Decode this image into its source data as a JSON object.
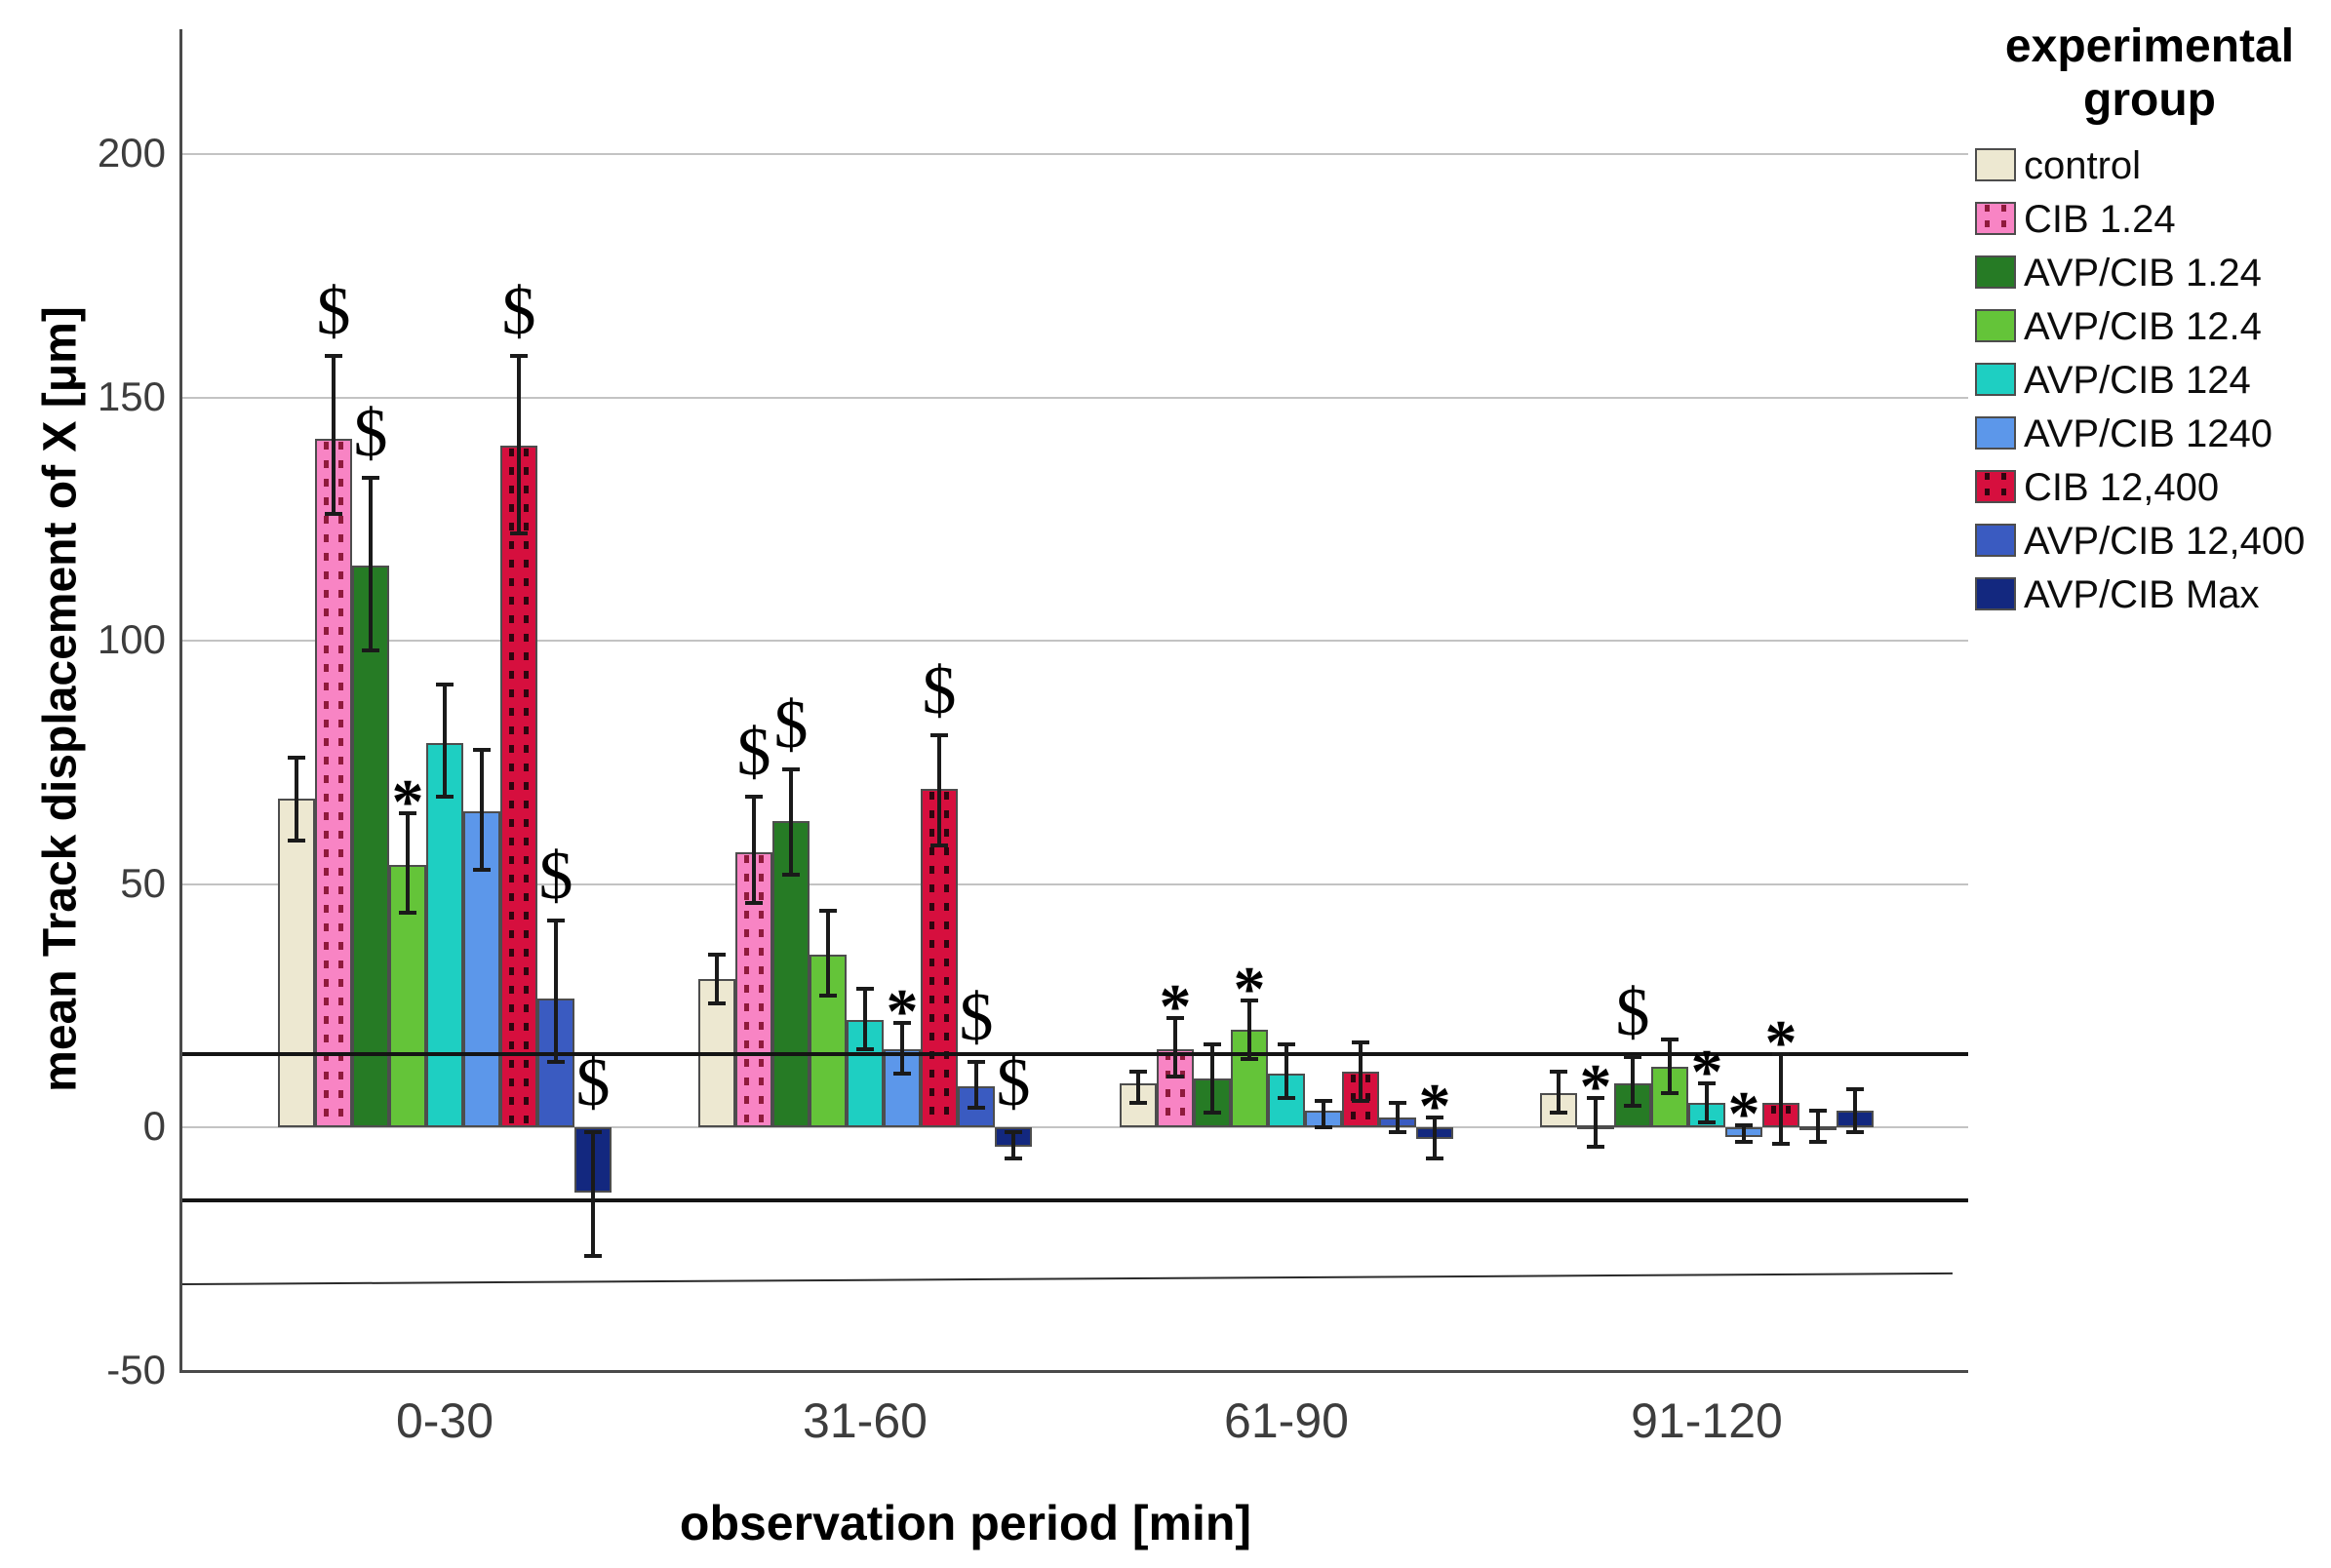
{
  "y_axis": {
    "label": "mean Track displacement of X [μm]",
    "ticks": [
      200,
      150,
      100,
      50,
      0,
      -50
    ]
  },
  "x_axis": {
    "label": "observation period [min]",
    "tick_labels": [
      "0-30",
      "31-60",
      "61-90",
      "91-120"
    ]
  },
  "legend": {
    "title_lines": [
      "experimental",
      "group"
    ]
  },
  "colors": {
    "axis_line": "#4a4a4a",
    "gridline": "#c3c3c3",
    "reference_line": "#141414",
    "error_bar": "#1a1a1a",
    "tick_text": "#3d3d3d",
    "title_text": "#000000"
  },
  "chart_data": {
    "type": "bar",
    "title": "",
    "xlabel": "observation period [min]",
    "ylabel": "mean Track displacement of X [μm]",
    "categories": [
      "0-30",
      "31-60",
      "61-90",
      "91-120"
    ],
    "y_ticks": [
      -50,
      0,
      50,
      100,
      150,
      200
    ],
    "ylim": [
      -50,
      226
    ],
    "grid": "horizontal",
    "legend_position": "right",
    "legend_title": "experimental group",
    "annotation_symbols": [
      "$",
      "*"
    ],
    "reference_lines": [
      {
        "value": 15,
        "style": "thick"
      },
      {
        "value": -15,
        "style": "thick"
      },
      {
        "value_start": -32,
        "value_end": -29.5,
        "style": "thin-sloped"
      }
    ],
    "series": [
      {
        "name": "control",
        "color": "#EDE8D1",
        "pattern": "none",
        "pattern_color": "",
        "values": [
          67.5,
          30.5,
          9,
          7
        ],
        "err_low": [
          59,
          25.5,
          5,
          3
        ],
        "err_high": [
          76,
          35.5,
          11.5,
          11.5
        ],
        "annotations": [
          null,
          null,
          null,
          null
        ]
      },
      {
        "name": "CIB 1.24",
        "color": "#F884C4",
        "pattern": "dots",
        "pattern_color": "#8F1A3C",
        "values": [
          141.5,
          56.5,
          16,
          0.5
        ],
        "err_low": [
          126,
          46,
          10.5,
          -4
        ],
        "err_high": [
          158.5,
          68,
          22.5,
          6
        ],
        "annotations": [
          "$",
          "$",
          "*",
          "*"
        ]
      },
      {
        "name": "AVP/CIB 1.24",
        "color": "#267B25",
        "pattern": "none",
        "pattern_color": "",
        "values": [
          115.5,
          63,
          10,
          9
        ],
        "err_low": [
          98,
          52,
          3,
          4.5
        ],
        "err_high": [
          133.5,
          73.5,
          17,
          14.5
        ],
        "annotations": [
          "$",
          "$",
          null,
          "$"
        ]
      },
      {
        "name": "AVP/CIB 12.4",
        "color": "#64C439",
        "pattern": "none",
        "pattern_color": "",
        "values": [
          54,
          35.5,
          20,
          12.5
        ],
        "err_low": [
          44,
          27,
          14,
          7
        ],
        "err_high": [
          64.5,
          44.5,
          26,
          18
        ],
        "annotations": [
          "*",
          null,
          "*",
          null
        ]
      },
      {
        "name": "AVP/CIB 124",
        "color": "#1ECFC2",
        "pattern": "none",
        "pattern_color": "",
        "values": [
          79,
          22,
          11,
          5
        ],
        "err_low": [
          68,
          16,
          6,
          1
        ],
        "err_high": [
          91,
          28.5,
          17,
          9
        ],
        "annotations": [
          null,
          null,
          null,
          "*"
        ]
      },
      {
        "name": "AVP/CIB 1240",
        "color": "#5C97EA",
        "pattern": "none",
        "pattern_color": "",
        "values": [
          65,
          16,
          3.5,
          -2
        ],
        "err_low": [
          53,
          11,
          0,
          -3
        ],
        "err_high": [
          77.5,
          21.5,
          5.5,
          0.5
        ],
        "annotations": [
          null,
          "*",
          null,
          "*"
        ]
      },
      {
        "name": "CIB 12,400",
        "color": "#D60F3E",
        "pattern": "dots",
        "pattern_color": "#2E050F",
        "values": [
          140,
          69.5,
          11.5,
          5
        ],
        "err_low": [
          122,
          58,
          5.5,
          -3.5
        ],
        "err_high": [
          158.5,
          80.5,
          17.5,
          15
        ],
        "annotations": [
          "$",
          "$",
          null,
          "*"
        ]
      },
      {
        "name": "AVP/CIB 12,400",
        "color": "#3A5BC1",
        "pattern": "none",
        "pattern_color": "",
        "values": [
          26.5,
          8.5,
          2,
          0.3
        ],
        "err_low": [
          13.5,
          4,
          -1,
          -3
        ],
        "err_high": [
          42.5,
          13.5,
          5,
          3.5
        ],
        "annotations": [
          "$",
          "$",
          null,
          null
        ]
      },
      {
        "name": "AVP/CIB Max",
        "color": "#13287F",
        "pattern": "none",
        "pattern_color": "",
        "values": [
          -13.5,
          -4,
          -2.5,
          3.5
        ],
        "err_low": [
          -26.5,
          -6.5,
          -6.5,
          -1
        ],
        "err_high": [
          -1,
          -1,
          2,
          7.8
        ],
        "annotations": [
          "$",
          "$",
          "*",
          null
        ]
      }
    ]
  }
}
